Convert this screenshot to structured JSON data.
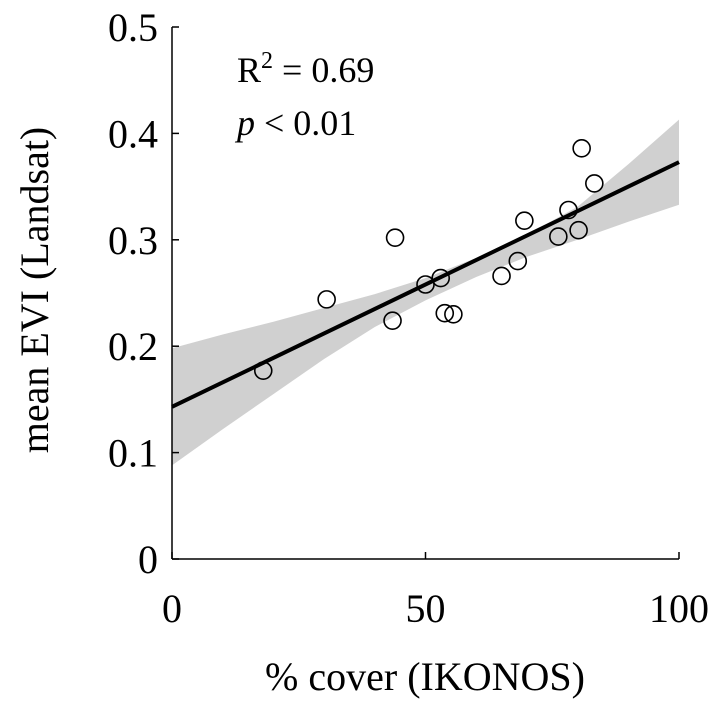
{
  "chart_data": {
    "type": "scatter",
    "xlabel": "% cover (IKONOS)",
    "ylabel": "mean EVI (Landsat)",
    "xlim": [
      0,
      100
    ],
    "ylim": [
      0,
      0.5
    ],
    "xticks": [
      0,
      50,
      100
    ],
    "yticks": [
      0,
      0.1,
      0.2,
      0.3,
      0.4,
      0.5
    ],
    "xtick_labels": [
      "0",
      "50",
      "100"
    ],
    "ytick_labels": [
      "0",
      "0.1",
      "0.2",
      "0.3",
      "0.4",
      "0.5"
    ],
    "grid": false,
    "series": [
      {
        "type": "scatter",
        "marker": "open-circle",
        "points": [
          {
            "x": 18,
            "y": 0.177
          },
          {
            "x": 30.5,
            "y": 0.244
          },
          {
            "x": 43.5,
            "y": 0.224
          },
          {
            "x": 44,
            "y": 0.302
          },
          {
            "x": 50,
            "y": 0.258
          },
          {
            "x": 53,
            "y": 0.264
          },
          {
            "x": 53.8,
            "y": 0.231
          },
          {
            "x": 55.5,
            "y": 0.23
          },
          {
            "x": 65,
            "y": 0.266
          },
          {
            "x": 68.2,
            "y": 0.28
          },
          {
            "x": 69.5,
            "y": 0.318
          },
          {
            "x": 76.2,
            "y": 0.303
          },
          {
            "x": 78.2,
            "y": 0.328
          },
          {
            "x": 80.2,
            "y": 0.309
          },
          {
            "x": 80.8,
            "y": 0.386
          },
          {
            "x": 83.3,
            "y": 0.353
          }
        ]
      },
      {
        "type": "line",
        "role": "regression-fit",
        "x": [
          0,
          100
        ],
        "y": [
          0.143,
          0.373
        ]
      },
      {
        "type": "band",
        "role": "confidence-interval",
        "x": [
          0,
          10,
          20,
          30,
          40,
          50,
          60,
          70,
          80,
          90,
          100
        ],
        "lower": [
          0.088,
          0.122,
          0.155,
          0.188,
          0.218,
          0.243,
          0.265,
          0.284,
          0.3,
          0.317,
          0.333
        ],
        "upper": [
          0.198,
          0.211,
          0.223,
          0.236,
          0.249,
          0.264,
          0.283,
          0.305,
          0.331,
          0.371,
          0.413
        ]
      }
    ],
    "annotations": {
      "r2_base": "R",
      "r2_sup": "2",
      "r2_value": " = 0.69",
      "p_symbol": "p",
      "p_value": " < 0.01"
    },
    "colors": {
      "marker_edge": "#000000",
      "fit_line": "#000000",
      "ci_band": "#d0d0d0",
      "axis": "#000000"
    }
  }
}
